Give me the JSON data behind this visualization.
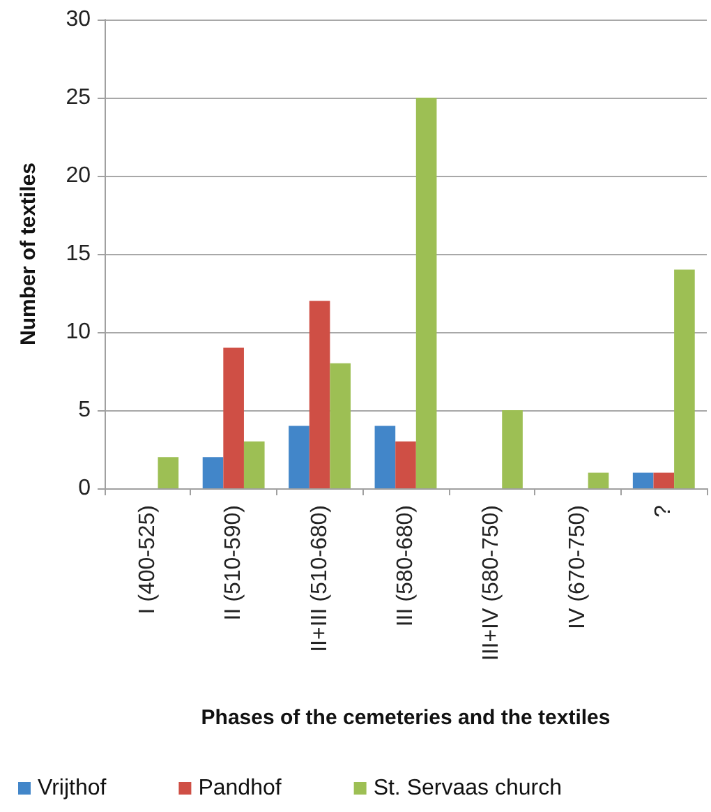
{
  "chart_data": {
    "type": "bar",
    "categories": [
      "I (400-525)",
      "II (510-590)",
      "II+III (510-680)",
      "III (580-680)",
      "III+IV (580-750)",
      "IV (670-750)",
      "?"
    ],
    "series": [
      {
        "name": "Vrijthof",
        "color": "#4286c9",
        "values": [
          0,
          2,
          4,
          4,
          0,
          0,
          1
        ]
      },
      {
        "name": "Pandhof",
        "color": "#cf4f45",
        "values": [
          0,
          9,
          12,
          3,
          0,
          0,
          1
        ]
      },
      {
        "name": "St. Servaas church",
        "color": "#9dbf54",
        "values": [
          2,
          3,
          8,
          25,
          5,
          1,
          14
        ]
      }
    ],
    "xlabel": "Phases of the cemeteries and the textiles",
    "ylabel": "Number of textiles",
    "ylim": [
      0,
      30
    ],
    "yticks": [
      0,
      5,
      10,
      15,
      20,
      25,
      30
    ],
    "grid": "y",
    "legend": "bottom"
  }
}
